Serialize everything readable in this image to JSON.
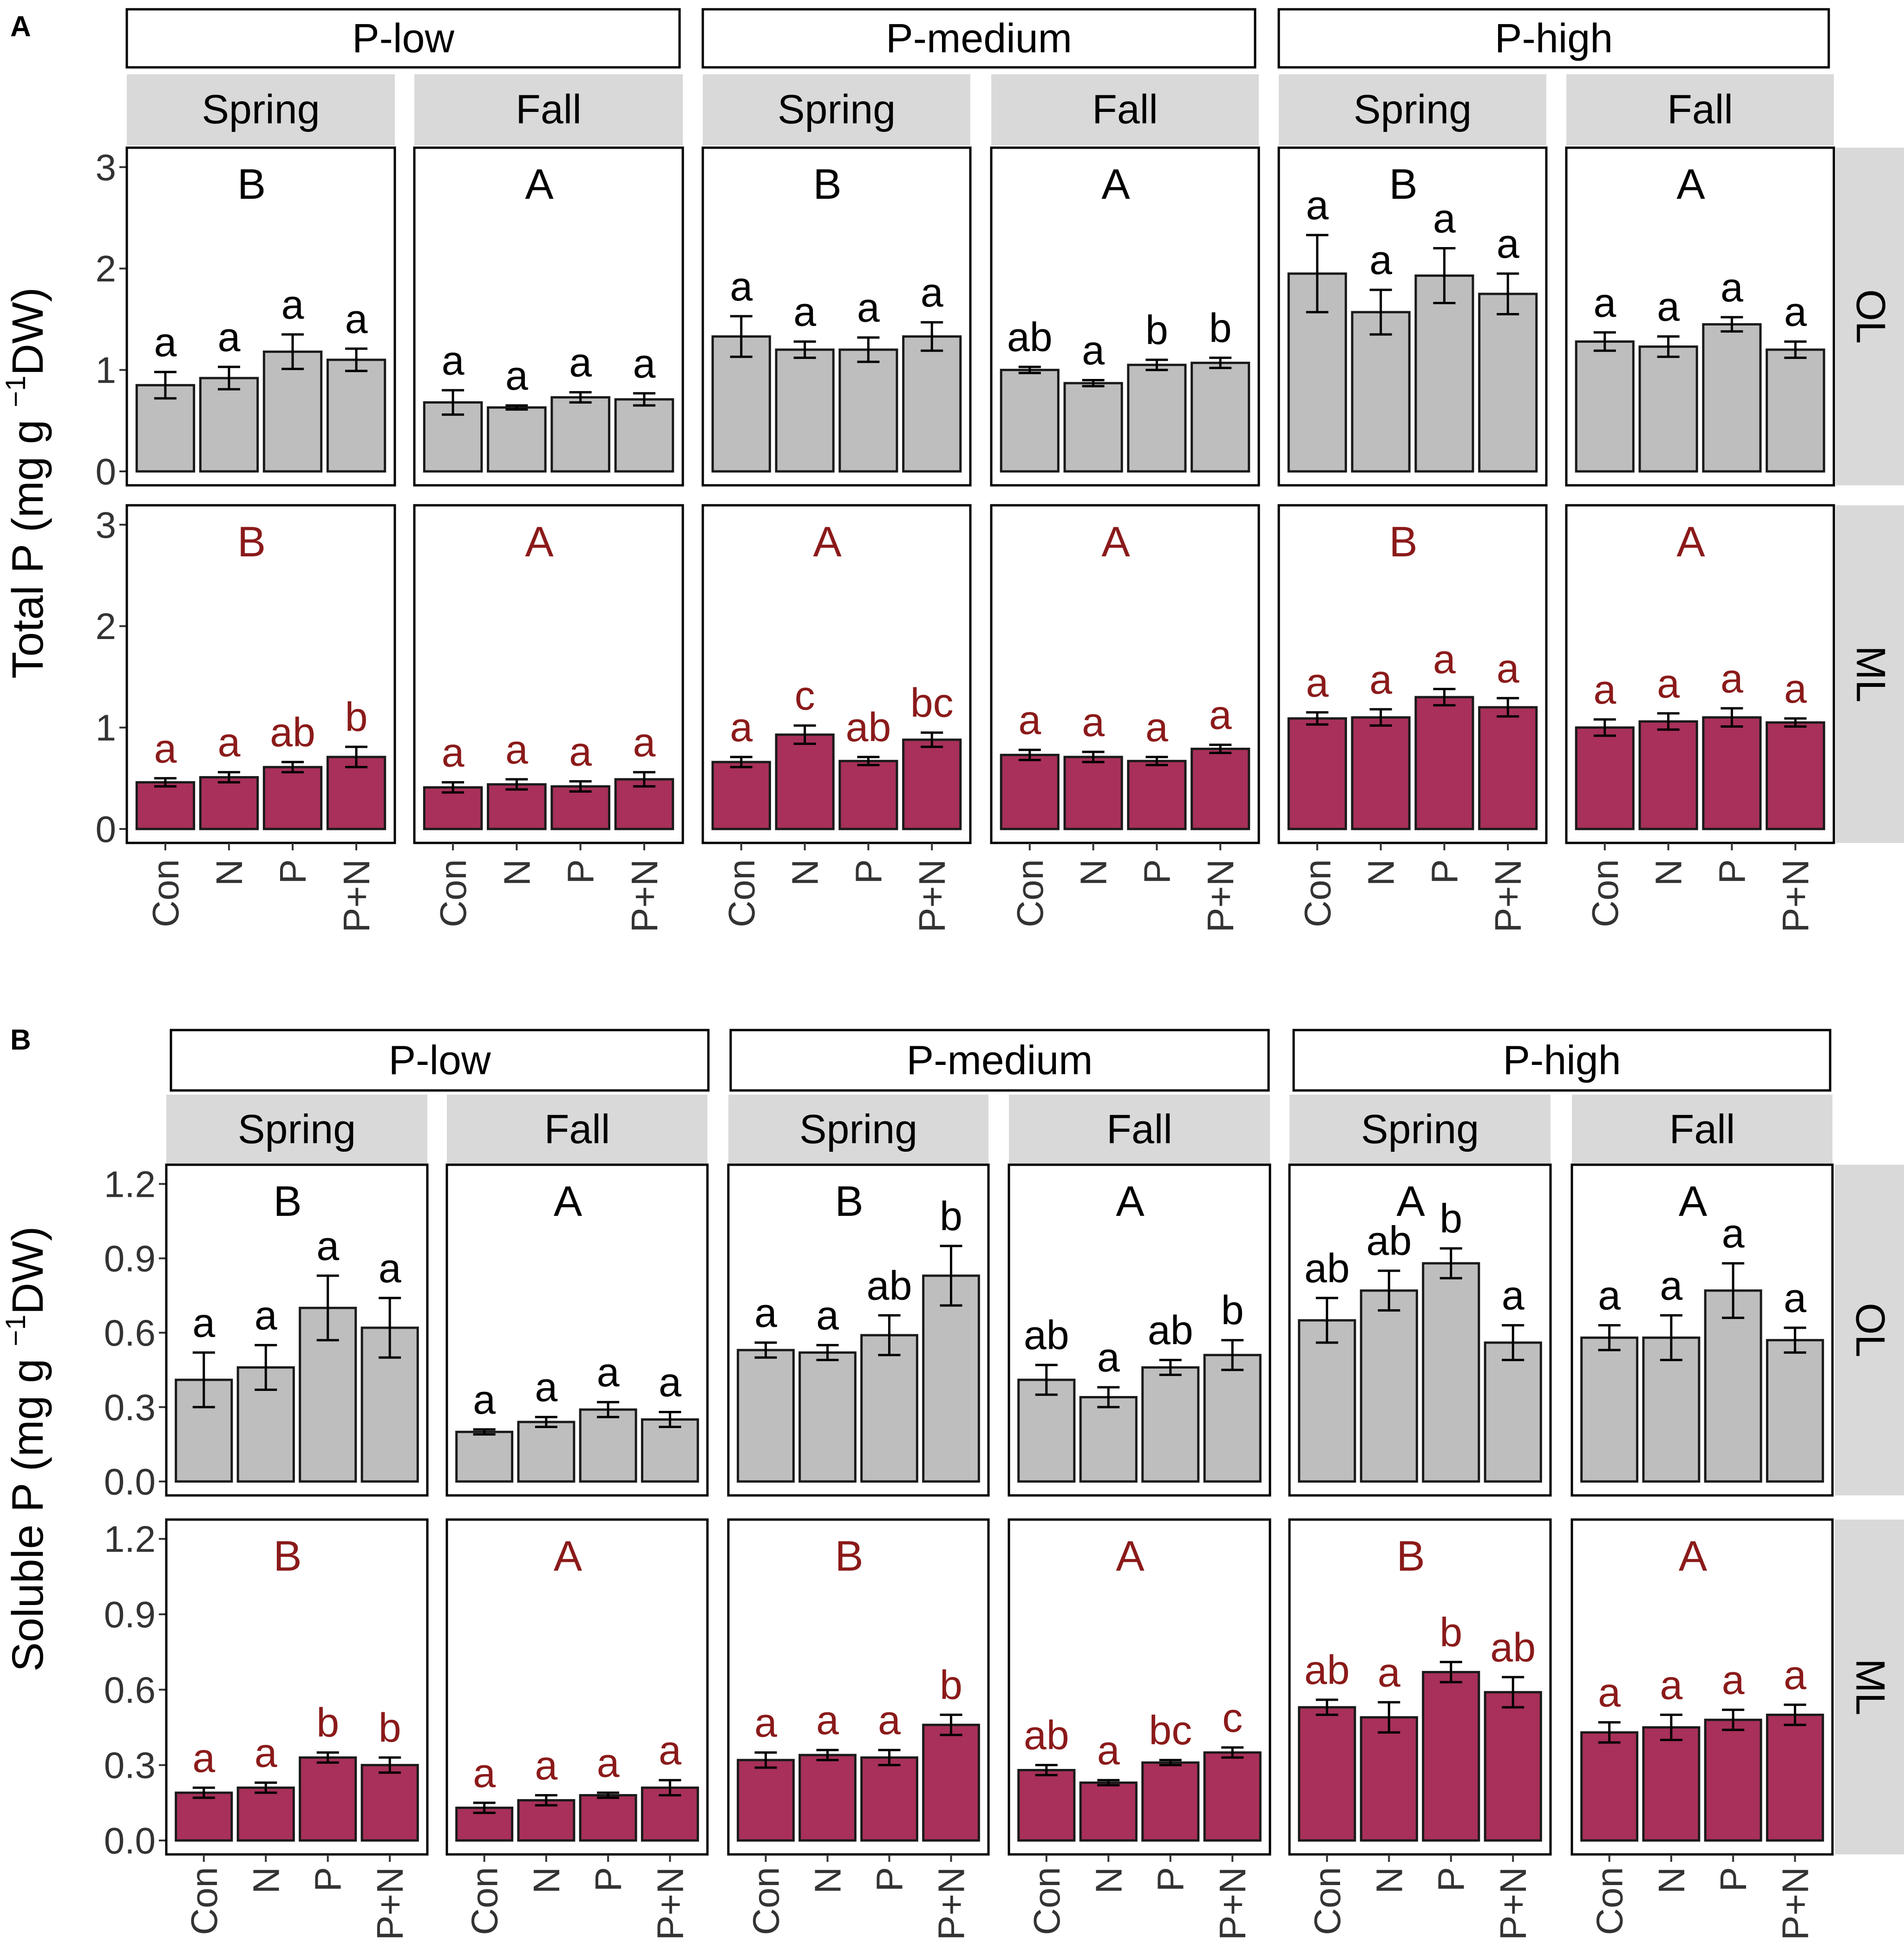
{
  "colors": {
    "OL": "#bebebe",
    "ML": "#a8305a",
    "ML_text": "#8b1a1a",
    "strip": "#d9d9d9",
    "text": "#000000",
    "axis": "#333333"
  },
  "categories": [
    "Con",
    "N",
    "P",
    "P+N"
  ],
  "chart_data": [
    {
      "type": "bar",
      "panel_label": "A",
      "ylabel": "Total P (mg g",
      "ylabel_sup": "−1",
      "ylabel_end": "DW)",
      "ylim": [
        0,
        3.1
      ],
      "yticks": [
        "0",
        "1",
        "2",
        "3"
      ],
      "ytick_values": [
        0,
        1,
        2,
        3
      ],
      "levels": [
        "P-low",
        "P-medium",
        "P-high"
      ],
      "seasons": [
        "Spring",
        "Fall"
      ],
      "layers": [
        "OL",
        "ML"
      ],
      "cells": {
        "OL": [
          {
            "group": "B",
            "values": [
              0.85,
              0.92,
              1.18,
              1.1
            ],
            "errors": [
              0.13,
              0.11,
              0.17,
              0.11
            ],
            "letters": [
              "a",
              "a",
              "a",
              "a"
            ]
          },
          {
            "group": "A",
            "values": [
              0.68,
              0.63,
              0.73,
              0.71
            ],
            "errors": [
              0.12,
              0.02,
              0.05,
              0.06
            ],
            "letters": [
              "a",
              "a",
              "a",
              "a"
            ]
          },
          {
            "group": "B",
            "values": [
              1.33,
              1.2,
              1.2,
              1.33
            ],
            "errors": [
              0.2,
              0.08,
              0.12,
              0.14
            ],
            "letters": [
              "a",
              "a",
              "a",
              "a"
            ]
          },
          {
            "group": "A",
            "values": [
              1.0,
              0.87,
              1.05,
              1.07
            ],
            "errors": [
              0.03,
              0.03,
              0.05,
              0.05
            ],
            "letters": [
              "ab",
              "a",
              "b",
              "b"
            ]
          },
          {
            "group": "B",
            "values": [
              1.95,
              1.57,
              1.93,
              1.75
            ],
            "errors": [
              0.38,
              0.22,
              0.27,
              0.2
            ],
            "letters": [
              "a",
              "a",
              "a",
              "a"
            ]
          },
          {
            "group": "A",
            "values": [
              1.28,
              1.23,
              1.45,
              1.2
            ],
            "errors": [
              0.09,
              0.1,
              0.07,
              0.08
            ],
            "letters": [
              "a",
              "a",
              "a",
              "a"
            ]
          }
        ],
        "ML": [
          {
            "group": "B",
            "values": [
              0.46,
              0.51,
              0.61,
              0.71
            ],
            "errors": [
              0.04,
              0.05,
              0.05,
              0.1
            ],
            "letters": [
              "a",
              "a",
              "ab",
              "b"
            ]
          },
          {
            "group": "A",
            "values": [
              0.41,
              0.44,
              0.42,
              0.49
            ],
            "errors": [
              0.05,
              0.05,
              0.05,
              0.07
            ],
            "letters": [
              "a",
              "a",
              "a",
              "a"
            ]
          },
          {
            "group": "A",
            "values": [
              0.66,
              0.93,
              0.67,
              0.88
            ],
            "errors": [
              0.05,
              0.09,
              0.04,
              0.07
            ],
            "letters": [
              "a",
              "c",
              "ab",
              "bc"
            ]
          },
          {
            "group": "A",
            "values": [
              0.73,
              0.71,
              0.67,
              0.79
            ],
            "errors": [
              0.05,
              0.05,
              0.04,
              0.04
            ],
            "letters": [
              "a",
              "a",
              "a",
              "a"
            ]
          },
          {
            "group": "B",
            "values": [
              1.09,
              1.1,
              1.3,
              1.2
            ],
            "errors": [
              0.06,
              0.08,
              0.08,
              0.09
            ],
            "letters": [
              "a",
              "a",
              "a",
              "a"
            ]
          },
          {
            "group": "A",
            "values": [
              1.0,
              1.06,
              1.1,
              1.05
            ],
            "errors": [
              0.08,
              0.08,
              0.09,
              0.04
            ],
            "letters": [
              "a",
              "a",
              "a",
              "a"
            ]
          }
        ]
      }
    },
    {
      "type": "bar",
      "panel_label": "B",
      "ylabel": "Soluble P (mg g",
      "ylabel_sup": "−1",
      "ylabel_end": "DW)",
      "ylim": [
        0,
        1.24
      ],
      "yticks": [
        "0.0",
        "0.3",
        "0.6",
        "0.9",
        "1.2"
      ],
      "ytick_values": [
        0,
        0.3,
        0.6,
        0.9,
        1.2
      ],
      "levels": [
        "P-low",
        "P-medium",
        "P-high"
      ],
      "seasons": [
        "Spring",
        "Fall"
      ],
      "layers": [
        "OL",
        "ML"
      ],
      "cells": {
        "OL": [
          {
            "group": "B",
            "values": [
              0.41,
              0.46,
              0.7,
              0.62
            ],
            "errors": [
              0.11,
              0.09,
              0.13,
              0.12
            ],
            "letters": [
              "a",
              "a",
              "a",
              "a"
            ]
          },
          {
            "group": "A",
            "values": [
              0.2,
              0.24,
              0.29,
              0.25
            ],
            "errors": [
              0.01,
              0.02,
              0.03,
              0.03
            ],
            "letters": [
              "a",
              "a",
              "a",
              "a"
            ]
          },
          {
            "group": "B",
            "values": [
              0.53,
              0.52,
              0.59,
              0.83
            ],
            "errors": [
              0.03,
              0.03,
              0.08,
              0.12
            ],
            "letters": [
              "a",
              "a",
              "ab",
              "b"
            ]
          },
          {
            "group": "A",
            "values": [
              0.41,
              0.34,
              0.46,
              0.51
            ],
            "errors": [
              0.06,
              0.04,
              0.03,
              0.06
            ],
            "letters": [
              "ab",
              "a",
              "ab",
              "b"
            ]
          },
          {
            "group": "A",
            "values": [
              0.65,
              0.77,
              0.88,
              0.56
            ],
            "errors": [
              0.09,
              0.08,
              0.06,
              0.07
            ],
            "letters": [
              "ab",
              "ab",
              "b",
              "a"
            ]
          },
          {
            "group": "A",
            "values": [
              0.58,
              0.58,
              0.77,
              0.57
            ],
            "errors": [
              0.05,
              0.09,
              0.11,
              0.05
            ],
            "letters": [
              "a",
              "a",
              "a",
              "a"
            ]
          }
        ],
        "ML": [
          {
            "group": "B",
            "values": [
              0.19,
              0.21,
              0.33,
              0.3
            ],
            "errors": [
              0.02,
              0.02,
              0.02,
              0.03
            ],
            "letters": [
              "a",
              "a",
              "b",
              "b"
            ]
          },
          {
            "group": "A",
            "values": [
              0.13,
              0.16,
              0.18,
              0.21
            ],
            "errors": [
              0.02,
              0.02,
              0.01,
              0.03
            ],
            "letters": [
              "a",
              "a",
              "a",
              "a"
            ]
          },
          {
            "group": "B",
            "values": [
              0.32,
              0.34,
              0.33,
              0.46
            ],
            "errors": [
              0.03,
              0.02,
              0.03,
              0.04
            ],
            "letters": [
              "a",
              "a",
              "a",
              "b"
            ]
          },
          {
            "group": "A",
            "values": [
              0.28,
              0.23,
              0.31,
              0.35
            ],
            "errors": [
              0.02,
              0.01,
              0.01,
              0.02
            ],
            "letters": [
              "ab",
              "a",
              "bc",
              "c"
            ]
          },
          {
            "group": "B",
            "values": [
              0.53,
              0.49,
              0.67,
              0.59
            ],
            "errors": [
              0.03,
              0.06,
              0.04,
              0.06
            ],
            "letters": [
              "ab",
              "a",
              "b",
              "ab"
            ]
          },
          {
            "group": "A",
            "values": [
              0.43,
              0.45,
              0.48,
              0.5
            ],
            "errors": [
              0.04,
              0.05,
              0.04,
              0.04
            ],
            "letters": [
              "a",
              "a",
              "a",
              "a"
            ]
          }
        ]
      }
    }
  ]
}
